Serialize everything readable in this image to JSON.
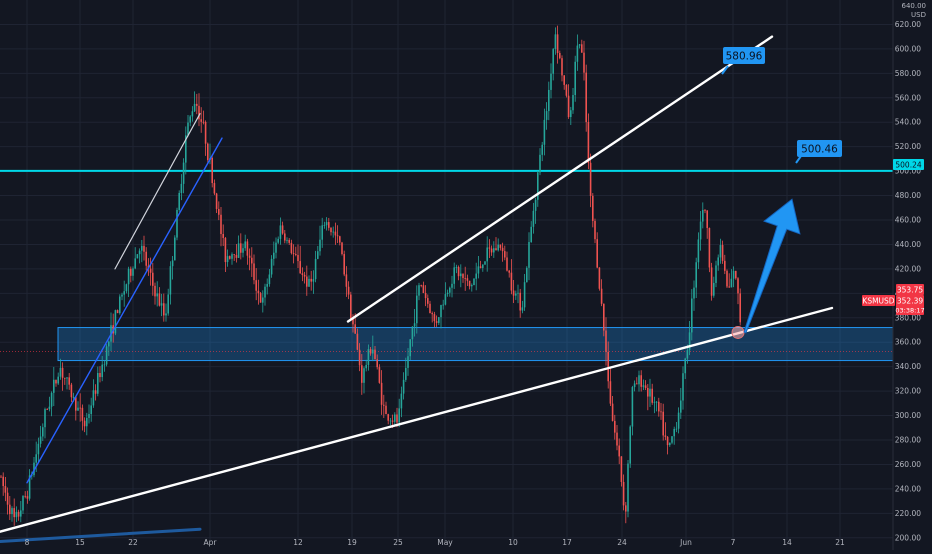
{
  "chart_data": {
    "type": "candlestick",
    "symbol": "KSMUSD",
    "currency": "USD",
    "y_axis": {
      "min": 190,
      "max": 640,
      "ticks": [
        200,
        220,
        240,
        260,
        280,
        300,
        320,
        340,
        360,
        380,
        400,
        420,
        440,
        460,
        480,
        500,
        520,
        540,
        560,
        580,
        600,
        620
      ],
      "top_label": "640.00"
    },
    "x_axis": {
      "labels": [
        "8",
        "15",
        "22",
        "Apr",
        "12",
        "19",
        "25",
        "May",
        "10",
        "17",
        "24",
        "Jun",
        "7",
        "14",
        "21"
      ]
    },
    "grid": true,
    "price_labels": {
      "last_price": "353.75",
      "second_price": "352.39",
      "countdown": "03:38:17",
      "horizontal_level": "500.24"
    },
    "annotations": {
      "target_upper": "580.96",
      "target_horizontal": "500.46"
    },
    "support_zone": {
      "low": 345,
      "high": 372
    },
    "horizontal_level_value": 500.24,
    "price_path": [
      {
        "x": 0,
        "v": 250
      },
      {
        "x": 15,
        "v": 212
      },
      {
        "x": 28,
        "v": 240
      },
      {
        "x": 45,
        "v": 300
      },
      {
        "x": 60,
        "v": 340
      },
      {
        "x": 70,
        "v": 320
      },
      {
        "x": 85,
        "v": 292
      },
      {
        "x": 100,
        "v": 335
      },
      {
        "x": 115,
        "v": 380
      },
      {
        "x": 125,
        "v": 405
      },
      {
        "x": 140,
        "v": 440
      },
      {
        "x": 152,
        "v": 408
      },
      {
        "x": 165,
        "v": 380
      },
      {
        "x": 178,
        "v": 470
      },
      {
        "x": 186,
        "v": 530
      },
      {
        "x": 195,
        "v": 560
      },
      {
        "x": 205,
        "v": 530
      },
      {
        "x": 215,
        "v": 480
      },
      {
        "x": 225,
        "v": 430
      },
      {
        "x": 245,
        "v": 440
      },
      {
        "x": 262,
        "v": 390
      },
      {
        "x": 280,
        "v": 455
      },
      {
        "x": 300,
        "v": 420
      },
      {
        "x": 310,
        "v": 405
      },
      {
        "x": 325,
        "v": 460
      },
      {
        "x": 340,
        "v": 440
      },
      {
        "x": 350,
        "v": 390
      },
      {
        "x": 362,
        "v": 330
      },
      {
        "x": 372,
        "v": 360
      },
      {
        "x": 385,
        "v": 300
      },
      {
        "x": 398,
        "v": 295
      },
      {
        "x": 410,
        "v": 360
      },
      {
        "x": 420,
        "v": 410
      },
      {
        "x": 435,
        "v": 375
      },
      {
        "x": 455,
        "v": 420
      },
      {
        "x": 470,
        "v": 405
      },
      {
        "x": 485,
        "v": 430
      },
      {
        "x": 500,
        "v": 440
      },
      {
        "x": 515,
        "v": 400
      },
      {
        "x": 522,
        "v": 390
      },
      {
        "x": 535,
        "v": 480
      },
      {
        "x": 548,
        "v": 560
      },
      {
        "x": 555,
        "v": 615
      },
      {
        "x": 562,
        "v": 580
      },
      {
        "x": 570,
        "v": 540
      },
      {
        "x": 578,
        "v": 610
      },
      {
        "x": 583,
        "v": 590
      },
      {
        "x": 590,
        "v": 480
      },
      {
        "x": 598,
        "v": 420
      },
      {
        "x": 605,
        "v": 360
      },
      {
        "x": 612,
        "v": 300
      },
      {
        "x": 620,
        "v": 260
      },
      {
        "x": 625,
        "v": 215
      },
      {
        "x": 632,
        "v": 320
      },
      {
        "x": 640,
        "v": 330
      },
      {
        "x": 648,
        "v": 320
      },
      {
        "x": 660,
        "v": 300
      },
      {
        "x": 668,
        "v": 270
      },
      {
        "x": 678,
        "v": 300
      },
      {
        "x": 688,
        "v": 360
      },
      {
        "x": 700,
        "v": 460
      },
      {
        "x": 705,
        "v": 470
      },
      {
        "x": 712,
        "v": 400
      },
      {
        "x": 720,
        "v": 440
      },
      {
        "x": 728,
        "v": 400
      },
      {
        "x": 735,
        "v": 420
      },
      {
        "x": 741,
        "v": 372
      }
    ],
    "trendlines": [
      {
        "name": "major-support",
        "x1": 0,
        "v1": 205,
        "x2": 832,
        "v2": 388,
        "color": "#ffffff",
        "width": 2.4
      },
      {
        "name": "mid-rising",
        "x1": 348,
        "v1": 377,
        "x2": 772,
        "v2": 610,
        "color": "#ffffff",
        "width": 2.4
      },
      {
        "name": "early-channel-upper",
        "x1": 115,
        "v1": 420,
        "x2": 200,
        "v2": 547,
        "color": "#d1d4dc",
        "width": 1.2
      },
      {
        "name": "early-channel-lower",
        "x1": 27,
        "v1": 245,
        "x2": 222,
        "v2": 527,
        "color": "#2962ff",
        "width": 1.4
      },
      {
        "name": "bottom-blue",
        "x1": 0,
        "v1": 197,
        "x2": 200,
        "v2": 207,
        "color": "#1e5a9e",
        "width": 3
      }
    ],
    "arrow": {
      "x1": 745,
      "v1": 368,
      "x2": 792,
      "v2": 477,
      "color": "#2196f3"
    },
    "touch_point": {
      "x": 738,
      "v": 368
    }
  }
}
